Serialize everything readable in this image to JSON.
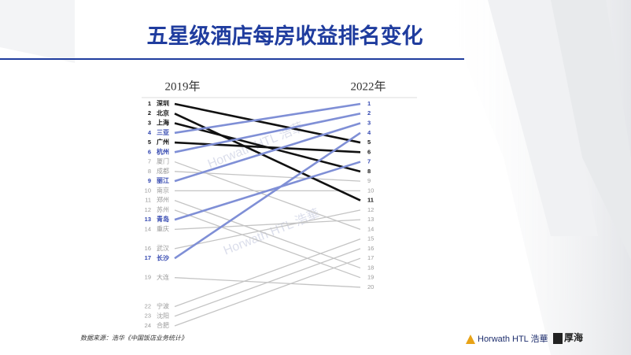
{
  "chart_data": {
    "type": "slope",
    "title": "五星级酒店每房收益排名变化",
    "left_label": "2019年",
    "right_label": "2022年",
    "ylim": [
      1,
      24
    ],
    "source": "数据来源：浩华《中国饭店业务统计》",
    "watermark": "Horwath HTL 浩華",
    "logo_left": "Horwath HTL 浩華",
    "logo_right": "厚海",
    "series": [
      {
        "name": "深圳",
        "color": "#111111",
        "values": [
          1,
          5
        ]
      },
      {
        "name": "北京",
        "color": "#111111",
        "values": [
          2,
          11
        ]
      },
      {
        "name": "上海",
        "color": "#111111",
        "values": [
          3,
          8
        ]
      },
      {
        "name": "三亚",
        "color": "#7f8fd6",
        "values": [
          4,
          1
        ]
      },
      {
        "name": "广州",
        "color": "#111111",
        "values": [
          5,
          6
        ]
      },
      {
        "name": "杭州",
        "color": "#7f8fd6",
        "values": [
          6,
          2
        ]
      },
      {
        "name": "厦门",
        "color": "#c4c4c4",
        "values": [
          7,
          14
        ]
      },
      {
        "name": "成都",
        "color": "#c4c4c4",
        "values": [
          8,
          9
        ]
      },
      {
        "name": "丽江",
        "color": "#7f8fd6",
        "values": [
          9,
          3
        ]
      },
      {
        "name": "南京",
        "color": "#c4c4c4",
        "values": [
          10,
          10
        ]
      },
      {
        "name": "郑州",
        "color": "#c4c4c4",
        "values": [
          11,
          18
        ]
      },
      {
        "name": "苏州",
        "color": "#c4c4c4",
        "values": [
          12,
          19
        ]
      },
      {
        "name": "青岛",
        "color": "#7f8fd6",
        "values": [
          13,
          7
        ]
      },
      {
        "name": "重庆",
        "color": "#c4c4c4",
        "values": [
          14,
          13
        ]
      },
      {
        "name": "武汉",
        "color": "#c4c4c4",
        "values": [
          16,
          12
        ]
      },
      {
        "name": "长沙",
        "color": "#7f8fd6",
        "values": [
          17,
          4
        ]
      },
      {
        "name": "大连",
        "color": "#c4c4c4",
        "values": [
          19,
          20
        ]
      },
      {
        "name": "宁波",
        "color": "#c4c4c4",
        "values": [
          22,
          15
        ]
      },
      {
        "name": "沈阳",
        "color": "#c4c4c4",
        "values": [
          23,
          16
        ]
      },
      {
        "name": "合肥",
        "color": "#c4c4c4",
        "values": [
          24,
          17
        ]
      }
    ]
  }
}
